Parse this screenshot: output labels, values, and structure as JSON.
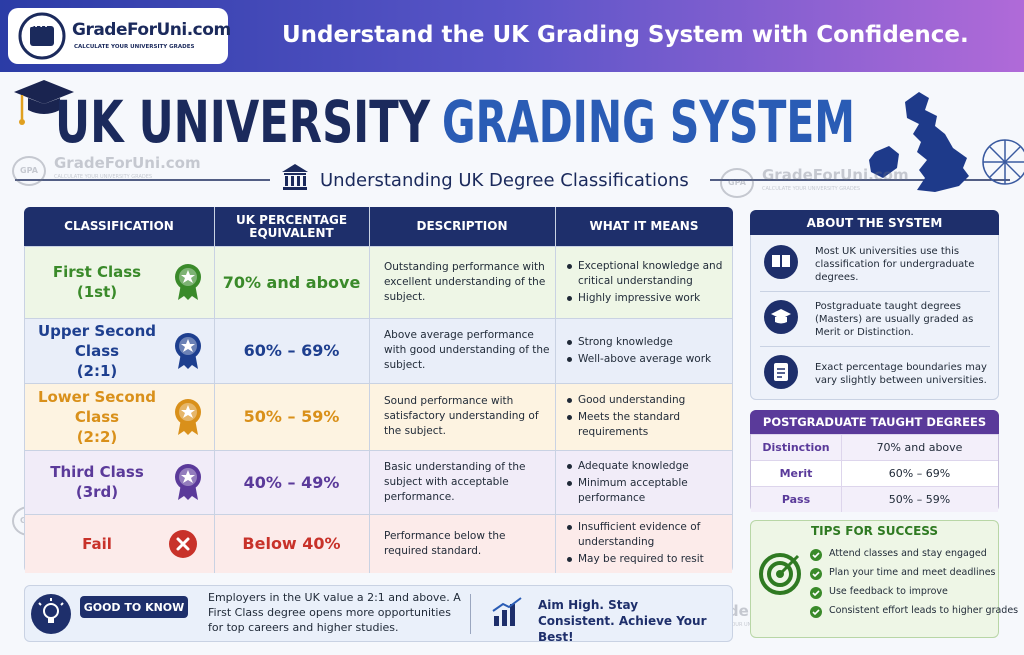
{
  "banner": {
    "logo": {
      "badge": "GPA",
      "brand": "GradeForUni.com",
      "tagline": "CALCULATE YOUR UNIVERSITY GRADES"
    },
    "headline": "Understand the UK Grading System with Confidence."
  },
  "title": {
    "part1": "UK UNIVERSITY",
    "part2": "GRADING SYSTEM"
  },
  "subtitle": "Understanding UK Degree Classifications",
  "watermark": {
    "badge": "GPA",
    "brand": "GradeForUni.com",
    "tagline": "CALCULATE YOUR UNIVERSITY GRADES"
  },
  "table": {
    "headers": [
      "CLASSIFICATION",
      "UK PERCENTAGE EQUIVALENT",
      "DESCRIPTION",
      "WHAT IT MEANS"
    ],
    "rows": [
      {
        "name": "First Class",
        "short": "(1st)",
        "percent": "70% and above",
        "description": "Outstanding performance with excellent understanding of the subject.",
        "means": [
          "Exceptional knowledge and critical understanding",
          "Highly impressive work"
        ]
      },
      {
        "name": "Upper Second Class",
        "short": "(2:1)",
        "percent": "60% – 69%",
        "description": "Above average performance with good understanding of the subject.",
        "means": [
          "Strong knowledge",
          "Well-above average work"
        ]
      },
      {
        "name": "Lower Second Class",
        "short": "(2:2)",
        "percent": "50% – 59%",
        "description": "Sound performance with satisfactory understanding of the subject.",
        "means": [
          "Good understanding",
          "Meets the standard requirements"
        ]
      },
      {
        "name": "Third Class",
        "short": "(3rd)",
        "percent": "40% – 49%",
        "description": "Basic understanding of the subject with acceptable performance.",
        "means": [
          "Adequate knowledge",
          "Minimum acceptable performance"
        ]
      },
      {
        "name": "Fail",
        "percent": "Below 40%",
        "description": "Performance below the required standard.",
        "means": [
          "Insufficient evidence of understanding",
          "May be required to resit"
        ]
      }
    ]
  },
  "about": {
    "title": "ABOUT THE SYSTEM",
    "items": [
      "Most UK universities use this classification for undergraduate degrees.",
      "Postgraduate taught degrees (Masters) are usually graded as Merit or Distinction.",
      "Exact percentage boundaries may vary slightly between universities."
    ]
  },
  "postgrad": {
    "title": "POSTGRADUATE TAUGHT DEGREES",
    "rows": [
      [
        "Distinction",
        "70% and above"
      ],
      [
        "Merit",
        "60% – 69%"
      ],
      [
        "Pass",
        "50% – 59%"
      ]
    ]
  },
  "tips": {
    "title": "TIPS FOR SUCCESS",
    "items": [
      "Attend classes and stay engaged",
      "Plan your time and meet deadlines",
      "Use feedback to improve",
      "Consistent effort leads to higher grades"
    ]
  },
  "footer": {
    "label": "GOOD TO KNOW",
    "text": "Employers in the UK value a 2:1 and above. A First Class degree opens more opportunities for top careers and higher studies.",
    "motto": "Aim High. Stay Consistent. Achieve Your Best!"
  }
}
